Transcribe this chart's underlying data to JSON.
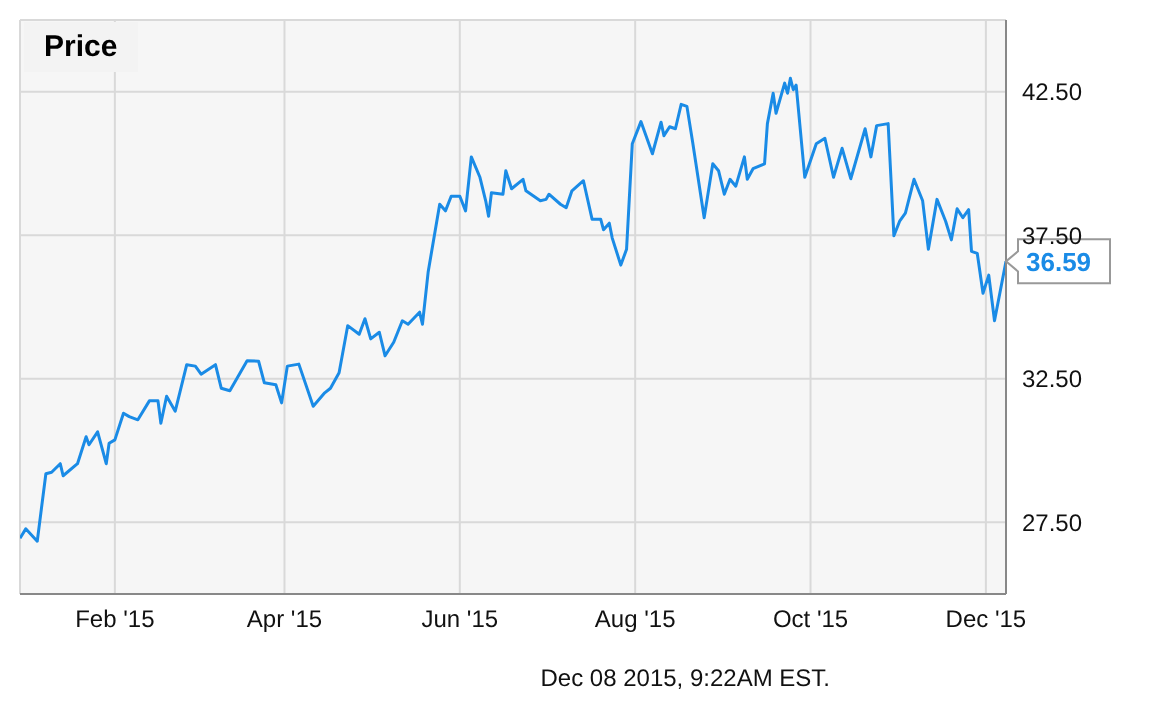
{
  "chart_data": {
    "type": "line",
    "title": "Price",
    "x": [
      "2014-12-30",
      "2015-01-01",
      "2015-01-05",
      "2015-01-08",
      "2015-01-10",
      "2015-01-13",
      "2015-01-14",
      "2015-01-19",
      "2015-01-22",
      "2015-01-23",
      "2015-01-26",
      "2015-01-29",
      "2015-01-30",
      "2015-02-01",
      "2015-02-04",
      "2015-02-06",
      "2015-02-09",
      "2015-02-13",
      "2015-02-16",
      "2015-02-17",
      "2015-02-19",
      "2015-02-22",
      "2015-02-26",
      "2015-03-01",
      "2015-03-03",
      "2015-03-08",
      "2015-03-10",
      "2015-03-13",
      "2015-03-19",
      "2015-03-23",
      "2015-03-25",
      "2015-03-29",
      "2015-03-31",
      "2015-04-02",
      "2015-04-06",
      "2015-04-11",
      "2015-04-15",
      "2015-04-17",
      "2015-04-20",
      "2015-04-23",
      "2015-04-27",
      "2015-04-29",
      "2015-05-01",
      "2015-05-04",
      "2015-05-06",
      "2015-05-09",
      "2015-05-12",
      "2015-05-14",
      "2015-05-18",
      "2015-05-19",
      "2015-05-21",
      "2015-05-25",
      "2015-05-27",
      "2015-05-29",
      "2015-06-01",
      "2015-06-03",
      "2015-06-05",
      "2015-06-08",
      "2015-06-10",
      "2015-06-11",
      "2015-06-12",
      "2015-06-16",
      "2015-06-17",
      "2015-06-19",
      "2015-06-23",
      "2015-06-24",
      "2015-06-29",
      "2015-07-01",
      "2015-07-02",
      "2015-07-06",
      "2015-07-08",
      "2015-07-10",
      "2015-07-14",
      "2015-07-17",
      "2015-07-20",
      "2015-07-21",
      "2015-07-23",
      "2015-07-24",
      "2015-07-27",
      "2015-07-29",
      "2015-07-31",
      "2015-08-03",
      "2015-08-07",
      "2015-08-10",
      "2015-08-11",
      "2015-08-13",
      "2015-08-15",
      "2015-08-17",
      "2015-08-19",
      "2015-08-21",
      "2015-08-25",
      "2015-08-28",
      "2015-08-30",
      "2015-09-01",
      "2015-09-03",
      "2015-09-05",
      "2015-09-08",
      "2015-09-09",
      "2015-09-11",
      "2015-09-15",
      "2015-09-16",
      "2015-09-18",
      "2015-09-19",
      "2015-09-22",
      "2015-09-23",
      "2015-09-24",
      "2015-09-25",
      "2015-09-26",
      "2015-09-29",
      "2015-10-03",
      "2015-10-06",
      "2015-10-09",
      "2015-10-12",
      "2015-10-15",
      "2015-10-20",
      "2015-10-22",
      "2015-10-24",
      "2015-10-28",
      "2015-10-30",
      "2015-11-01",
      "2015-11-03",
      "2015-11-06",
      "2015-11-09",
      "2015-11-11",
      "2015-11-14",
      "2015-11-17",
      "2015-11-19",
      "2015-11-21",
      "2015-11-23",
      "2015-11-25",
      "2015-11-26",
      "2015-11-28",
      "2015-11-30",
      "2015-12-02",
      "2015-12-04",
      "2015-12-08"
    ],
    "series": [
      {
        "color": "#1a8be6",
        "values": [
          26.94,
          27.27,
          26.84,
          29.19,
          29.24,
          29.54,
          29.12,
          29.54,
          30.48,
          30.2,
          30.65,
          29.54,
          30.25,
          30.37,
          31.3,
          31.18,
          31.07,
          31.73,
          31.73,
          30.95,
          31.89,
          31.37,
          32.99,
          32.94,
          32.66,
          32.99,
          32.17,
          32.08,
          33.13,
          33.11,
          32.36,
          32.29,
          31.66,
          32.94,
          33.01,
          31.54,
          32.01,
          32.17,
          32.71,
          34.35,
          34.05,
          34.59,
          33.89,
          34.12,
          33.3,
          33.77,
          34.52,
          34.4,
          34.82,
          34.4,
          36.23,
          38.58,
          38.35,
          38.86,
          38.86,
          38.35,
          40.23,
          39.52,
          38.7,
          38.16,
          38.98,
          38.93,
          39.75,
          39.12,
          39.45,
          39.05,
          38.7,
          38.75,
          38.93,
          38.58,
          38.46,
          39.05,
          39.4,
          38.06,
          38.06,
          37.69,
          37.92,
          37.41,
          36.46,
          37.01,
          40.69,
          41.46,
          40.34,
          41.44,
          40.97,
          41.28,
          41.21,
          42.06,
          41.99,
          40.74,
          38.11,
          39.99,
          39.75,
          38.93,
          39.45,
          39.21,
          40.23,
          39.45,
          39.82,
          39.99,
          41.39,
          42.45,
          41.75,
          42.8,
          42.45,
          42.97,
          42.57,
          42.73,
          39.52,
          40.69,
          40.88,
          39.52,
          40.53,
          39.47,
          41.21,
          40.23,
          41.32,
          41.39,
          37.48,
          37.99,
          38.27,
          39.45,
          38.7,
          37.01,
          38.75,
          37.99,
          37.34,
          38.42,
          38.11,
          38.39,
          36.94,
          36.87,
          35.48,
          36.11,
          34.52,
          36.59
        ]
      }
    ],
    "xlim": [
      "2014-12-30",
      "2015-12-08"
    ],
    "xticks": [
      {
        "value": "2015-02-01",
        "label": "Feb '15"
      },
      {
        "value": "2015-04-01",
        "label": "Apr '15"
      },
      {
        "value": "2015-06-01",
        "label": "Jun '15"
      },
      {
        "value": "2015-08-01",
        "label": "Aug '15"
      },
      {
        "value": "2015-10-01",
        "label": "Oct '15"
      },
      {
        "value": "2015-12-01",
        "label": "Dec '15"
      }
    ],
    "ylim": [
      25,
      45
    ],
    "yticks": [
      {
        "value": 27.5,
        "label": "27.50"
      },
      {
        "value": 32.5,
        "label": "32.50"
      },
      {
        "value": 37.5,
        "label": "37.50"
      },
      {
        "value": 42.5,
        "label": "42.50"
      }
    ],
    "grid": true,
    "legend": false,
    "annotations": [
      {
        "text": "36.59",
        "x": "2015-12-08",
        "y": 36.59
      },
      "Dec 08 2015, 9:22AM EST."
    ]
  }
}
